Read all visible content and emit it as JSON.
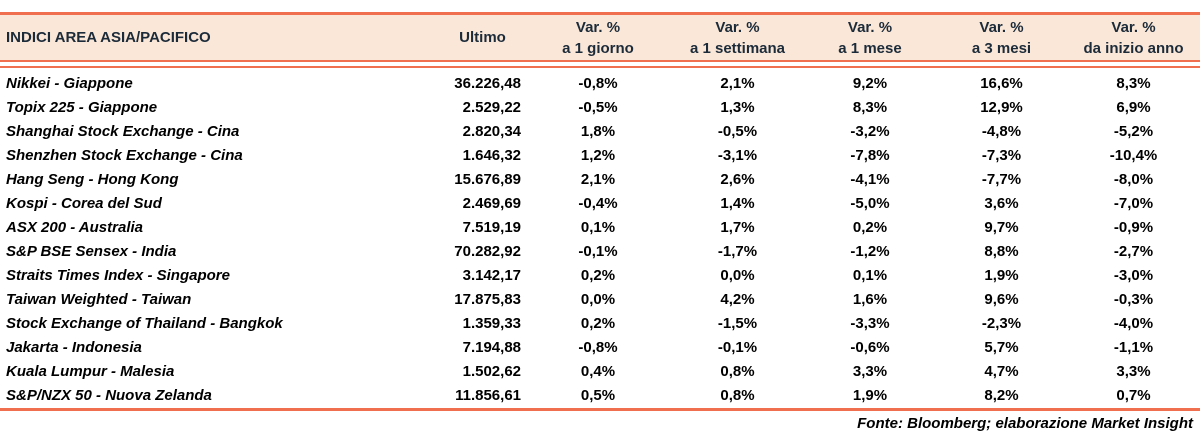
{
  "colors": {
    "accent_orange": "#EF6F4F",
    "header_background": "#FBE7D7",
    "header_text": "#1C2B3A",
    "body_text": "#000000"
  },
  "table": {
    "title": "INDICI AREA ASIA/PACIFICO",
    "columns": {
      "ultimo": "Ultimo",
      "var_label": "Var. %",
      "periods": [
        "a 1 giorno",
        "a 1 settimana",
        "a 1 mese",
        "a 3 mesi",
        "da inizio anno"
      ]
    },
    "rows": [
      {
        "name": "Nikkei - Giappone",
        "ultimo": "36.226,48",
        "pcts": [
          "-0,8%",
          "2,1%",
          "9,2%",
          "16,6%",
          "8,3%"
        ]
      },
      {
        "name": "Topix 225 - Giappone",
        "ultimo": "2.529,22",
        "pcts": [
          "-0,5%",
          "1,3%",
          "8,3%",
          "12,9%",
          "6,9%"
        ]
      },
      {
        "name": "Shanghai Stock Exchange - Cina",
        "ultimo": "2.820,34",
        "pcts": [
          "1,8%",
          "-0,5%",
          "-3,2%",
          "-4,8%",
          "-5,2%"
        ]
      },
      {
        "name": "Shenzhen Stock Exchange - Cina",
        "ultimo": "1.646,32",
        "pcts": [
          "1,2%",
          "-3,1%",
          "-7,8%",
          "-7,3%",
          "-10,4%"
        ]
      },
      {
        "name": "Hang Seng - Hong Kong",
        "ultimo": "15.676,89",
        "pcts": [
          "2,1%",
          "2,6%",
          "-4,1%",
          "-7,7%",
          "-8,0%"
        ]
      },
      {
        "name": "Kospi - Corea del Sud",
        "ultimo": "2.469,69",
        "pcts": [
          "-0,4%",
          "1,4%",
          "-5,0%",
          "3,6%",
          "-7,0%"
        ]
      },
      {
        "name": "ASX 200 - Australia",
        "ultimo": "7.519,19",
        "pcts": [
          "0,1%",
          "1,7%",
          "0,2%",
          "9,7%",
          "-0,9%"
        ]
      },
      {
        "name": "S&P BSE Sensex - India",
        "ultimo": "70.282,92",
        "pcts": [
          "-0,1%",
          "-1,7%",
          "-1,2%",
          "8,8%",
          "-2,7%"
        ]
      },
      {
        "name": "Straits Times Index - Singapore",
        "ultimo": "3.142,17",
        "pcts": [
          "0,2%",
          "0,0%",
          "0,1%",
          "1,9%",
          "-3,0%"
        ]
      },
      {
        "name": "Taiwan Weighted - Taiwan",
        "ultimo": "17.875,83",
        "pcts": [
          "0,0%",
          "4,2%",
          "1,6%",
          "9,6%",
          "-0,3%"
        ]
      },
      {
        "name": "Stock Exchange of Thailand - Bangkok",
        "ultimo": "1.359,33",
        "pcts": [
          "0,2%",
          "-1,5%",
          "-3,3%",
          "-2,3%",
          "-4,0%"
        ]
      },
      {
        "name": "Jakarta - Indonesia",
        "ultimo": "7.194,88",
        "pcts": [
          "-0,8%",
          "-0,1%",
          "-0,6%",
          "5,7%",
          "-1,1%"
        ]
      },
      {
        "name": "Kuala Lumpur - Malesia",
        "ultimo": "1.502,62",
        "pcts": [
          "0,4%",
          "0,8%",
          "3,3%",
          "4,7%",
          "3,3%"
        ]
      },
      {
        "name": "S&P/NZX 50 - Nuova Zelanda",
        "ultimo": "11.856,61",
        "pcts": [
          "0,5%",
          "0,8%",
          "1,9%",
          "8,2%",
          "0,7%"
        ]
      }
    ]
  },
  "footer": {
    "source": "Fonte: Bloomberg; elaborazione Market Insight"
  }
}
